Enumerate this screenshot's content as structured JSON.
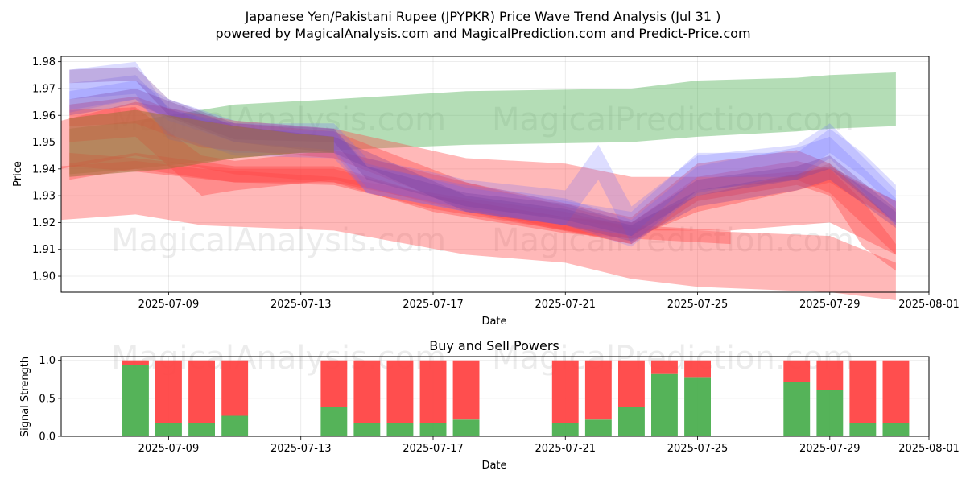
{
  "title_line1": "Japanese Yen/Pakistani Rupee (JPYPKR) Price Wave Trend Analysis (Jul 31 )",
  "title_line2": "powered by MagicalAnalysis.com and MagicalPrediction.com and Predict-Price.com",
  "watermarks": [
    "MagicalAnalysis.com",
    "MagicalPrediction.com"
  ],
  "colors": {
    "green": "#4caf50",
    "red": "#ff4444",
    "blue": "#6666ff",
    "purple": "#7a3fa0",
    "brown": "#a0703a"
  },
  "chart_data": [
    {
      "type": "area",
      "title": "",
      "xlabel": "Date",
      "ylabel": "Price",
      "xlim": [
        "2025-07-05 18:00",
        "2025-08-01 00:00"
      ],
      "ylim": [
        1.894,
        1.982
      ],
      "x_ticks": [
        "2025-07-09",
        "2025-07-13",
        "2025-07-17",
        "2025-07-21",
        "2025-07-25",
        "2025-07-29",
        "2025-08-01"
      ],
      "y_ticks": [
        "1.90",
        "1.91",
        "1.92",
        "1.93",
        "1.94",
        "1.95",
        "1.96",
        "1.97",
        "1.98"
      ],
      "grid": true,
      "series": [
        {
          "color": "green",
          "bands": [
            {
              "x": [
                "2025-07-06",
                "2025-07-08",
                "2025-07-11",
                "2025-07-14",
                "2025-07-18",
                "2025-07-23",
                "2025-07-25",
                "2025-07-28",
                "2025-07-29",
                "2025-07-31"
              ],
              "upper": [
                1.955,
                1.958,
                1.964,
                1.966,
                1.969,
                1.97,
                1.973,
                1.974,
                1.975,
                1.976
              ],
              "lower": [
                1.938,
                1.94,
                1.944,
                1.947,
                1.949,
                1.95,
                1.952,
                1.954,
                1.955,
                1.956
              ]
            }
          ]
        },
        {
          "color": "red",
          "bands": [
            {
              "x": [
                "2025-07-05 18:00",
                "2025-07-08",
                "2025-07-10",
                "2025-07-14",
                "2025-07-18",
                "2025-07-21",
                "2025-07-23",
                "2025-07-25",
                "2025-07-29",
                "2025-07-31"
              ],
              "upper": [
                1.941,
                1.943,
                1.94,
                1.937,
                1.929,
                1.924,
                1.918,
                1.917,
                1.915,
                1.905
              ],
              "lower": [
                1.921,
                1.923,
                1.919,
                1.917,
                1.908,
                1.905,
                1.899,
                1.896,
                1.894,
                1.891
              ]
            },
            {
              "x": [
                "2025-07-05 18:00",
                "2025-07-08",
                "2025-07-11",
                "2025-07-14",
                "2025-07-18",
                "2025-07-21",
                "2025-07-23",
                "2025-07-26",
                "2025-07-29",
                "2025-07-31"
              ],
              "upper": [
                1.958,
                1.965,
                1.958,
                1.955,
                1.944,
                1.942,
                1.937,
                1.937,
                1.94,
                1.928
              ],
              "lower": [
                1.94,
                1.945,
                1.938,
                1.935,
                1.925,
                1.922,
                1.917,
                1.917,
                1.92,
                1.908
              ]
            },
            {
              "x": [
                "2025-07-06",
                "2025-07-08",
                "2025-07-10",
                "2025-07-14",
                "2025-07-18",
                "2025-07-23",
                "2025-07-25",
                "2025-07-28",
                "2025-07-29",
                "2025-07-30",
                "2025-07-31"
              ],
              "upper": [
                1.964,
                1.967,
                1.958,
                1.954,
                1.935,
                1.92,
                1.937,
                1.943,
                1.94,
                1.928,
                1.912
              ],
              "lower": [
                1.956,
                1.957,
                1.948,
                1.944,
                1.925,
                1.912,
                1.928,
                1.934,
                1.93,
                1.911,
                1.902
              ]
            },
            {
              "x": [
                "2025-07-06",
                "2025-07-08",
                "2025-07-10",
                "2025-07-11",
                "2025-07-14",
                "2025-07-18",
                "2025-07-23",
                "2025-07-25",
                "2025-07-28",
                "2025-07-29",
                "2025-07-31"
              ],
              "upper": [
                1.962,
                1.963,
                1.945,
                1.943,
                1.947,
                1.935,
                1.922,
                1.942,
                1.947,
                1.942,
                1.92
              ],
              "lower": [
                1.95,
                1.952,
                1.93,
                1.932,
                1.936,
                1.924,
                1.912,
                1.932,
                1.936,
                1.931,
                1.908
              ]
            },
            {
              "x": [
                "2025-07-06",
                "2025-07-08",
                "2025-07-11",
                "2025-07-14",
                "2025-07-17",
                "2025-07-21",
                "2025-07-23",
                "2025-07-25",
                "2025-07-28",
                "2025-07-29",
                "2025-07-31"
              ],
              "upper": [
                1.942,
                1.946,
                1.941,
                1.941,
                1.93,
                1.922,
                1.92,
                1.93,
                1.938,
                1.941,
                1.928
              ],
              "lower": [
                1.936,
                1.94,
                1.935,
                1.935,
                1.924,
                1.916,
                1.914,
                1.924,
                1.932,
                1.935,
                1.92
              ]
            },
            {
              "x": [
                "2025-07-06",
                "2025-07-08",
                "2025-07-11",
                "2025-07-14",
                "2025-07-17",
                "2025-07-21",
                "2025-07-23",
                "2025-07-26"
              ],
              "upper": [
                1.946,
                1.944,
                1.94,
                1.94,
                1.93,
                1.922,
                1.919,
                1.917
              ],
              "lower": [
                1.941,
                1.939,
                1.935,
                1.934,
                1.925,
                1.917,
                1.914,
                1.912
              ]
            }
          ]
        },
        {
          "color": "blue",
          "bands": [
            {
              "x": [
                "2025-07-06",
                "2025-07-08",
                "2025-07-09",
                "2025-07-11",
                "2025-07-14",
                "2025-07-15",
                "2025-07-18",
                "2025-07-21",
                "2025-07-22",
                "2025-07-23",
                "2025-07-25",
                "2025-07-28",
                "2025-07-29",
                "2025-07-31"
              ],
              "upper": [
                1.977,
                1.98,
                1.962,
                1.957,
                1.957,
                1.944,
                1.936,
                1.932,
                1.949,
                1.926,
                1.945,
                1.949,
                1.957,
                1.932
              ],
              "lower": [
                1.966,
                1.968,
                1.951,
                1.946,
                1.946,
                1.931,
                1.924,
                1.919,
                1.936,
                1.912,
                1.932,
                1.936,
                1.944,
                1.919
              ]
            },
            {
              "x": [
                "2025-07-06",
                "2025-07-08",
                "2025-07-09",
                "2025-07-11",
                "2025-07-14",
                "2025-07-15",
                "2025-07-18",
                "2025-07-21",
                "2025-07-23",
                "2025-07-25",
                "2025-07-28",
                "2025-07-29",
                "2025-07-31"
              ],
              "upper": [
                1.972,
                1.975,
                1.963,
                1.955,
                1.954,
                1.941,
                1.934,
                1.929,
                1.921,
                1.941,
                1.948,
                1.952,
                1.929
              ],
              "lower": [
                1.962,
                1.966,
                1.953,
                1.945,
                1.944,
                1.931,
                1.924,
                1.919,
                1.911,
                1.931,
                1.938,
                1.942,
                1.919
              ]
            },
            {
              "x": [
                "2025-07-06",
                "2025-07-08",
                "2025-07-09",
                "2025-07-11",
                "2025-07-14",
                "2025-07-15",
                "2025-07-18",
                "2025-07-21",
                "2025-07-23",
                "2025-07-25",
                "2025-07-28",
                "2025-07-29",
                "2025-07-30",
                "2025-07-31"
              ],
              "upper": [
                1.969,
                1.973,
                1.966,
                1.958,
                1.955,
                1.942,
                1.933,
                1.928,
                1.924,
                1.946,
                1.946,
                1.955,
                1.946,
                1.934
              ],
              "lower": [
                1.961,
                1.966,
                1.958,
                1.95,
                1.947,
                1.933,
                1.925,
                1.919,
                1.915,
                1.937,
                1.937,
                1.946,
                1.937,
                1.925
              ]
            }
          ]
        },
        {
          "color": "purple",
          "bands": [
            {
              "x": [
                "2025-07-06",
                "2025-07-08",
                "2025-07-09",
                "2025-07-11",
                "2025-07-14",
                "2025-07-15",
                "2025-07-18",
                "2025-07-21",
                "2025-07-23",
                "2025-07-25",
                "2025-07-28",
                "2025-07-29",
                "2025-07-31"
              ],
              "upper": [
                1.977,
                1.978,
                1.966,
                1.957,
                1.955,
                1.941,
                1.931,
                1.927,
                1.92,
                1.936,
                1.941,
                1.945,
                1.925
              ],
              "lower": [
                1.972,
                1.973,
                1.96,
                1.951,
                1.95,
                1.936,
                1.926,
                1.921,
                1.915,
                1.93,
                1.936,
                1.94,
                1.92
              ]
            },
            {
              "x": [
                "2025-07-06",
                "2025-07-08",
                "2025-07-11",
                "2025-07-14",
                "2025-07-18",
                "2025-07-21",
                "2025-07-23",
                "2025-07-25",
                "2025-07-28",
                "2025-07-29",
                "2025-07-31"
              ],
              "upper": [
                1.966,
                1.97,
                1.956,
                1.952,
                1.93,
                1.925,
                1.919,
                1.932,
                1.938,
                1.942,
                1.924
              ],
              "lower": [
                1.96,
                1.964,
                1.95,
                1.946,
                1.924,
                1.919,
                1.913,
                1.926,
                1.932,
                1.936,
                1.918
              ]
            }
          ]
        },
        {
          "color": "brown",
          "bands": [
            {
              "x": [
                "2025-07-06",
                "2025-07-08",
                "2025-07-09",
                "2025-07-11",
                "2025-07-13",
                "2025-07-14"
              ],
              "upper": [
                1.959,
                1.962,
                1.96,
                1.956,
                1.953,
                1.952
              ],
              "lower": [
                1.937,
                1.939,
                1.94,
                1.944,
                1.946,
                1.946
              ]
            }
          ]
        }
      ]
    },
    {
      "type": "bar",
      "title": "Buy and Sell Powers",
      "xlabel": "Date",
      "ylabel": "Signal Strength",
      "xlim": [
        "2025-07-05 18:00",
        "2025-08-01 00:00"
      ],
      "ylim": [
        0,
        1.05
      ],
      "x_ticks": [
        "2025-07-09",
        "2025-07-13",
        "2025-07-17",
        "2025-07-21",
        "2025-07-25",
        "2025-07-29",
        "2025-08-01"
      ],
      "y_ticks": [
        "0.0",
        "0.5",
        "1.0"
      ],
      "grid": true,
      "stacked": true,
      "categories": [
        "2025-07-08",
        "2025-07-09",
        "2025-07-10",
        "2025-07-11",
        "2025-07-14",
        "2025-07-15",
        "2025-07-16",
        "2025-07-17",
        "2025-07-18",
        "2025-07-21",
        "2025-07-22",
        "2025-07-23",
        "2025-07-24",
        "2025-07-25",
        "2025-07-28",
        "2025-07-29",
        "2025-07-30",
        "2025-07-31"
      ],
      "series": [
        {
          "color": "green",
          "values": [
            0.94,
            0.17,
            0.17,
            0.27,
            0.39,
            0.17,
            0.17,
            0.17,
            0.22,
            0.17,
            0.22,
            0.39,
            0.83,
            0.78,
            0.72,
            0.61,
            0.17,
            0.17
          ]
        },
        {
          "color": "red",
          "values": [
            0.06,
            0.83,
            0.83,
            0.73,
            0.61,
            0.83,
            0.83,
            0.83,
            0.78,
            0.83,
            0.78,
            0.61,
            0.17,
            0.22,
            0.28,
            0.39,
            0.83,
            0.83
          ]
        }
      ]
    }
  ]
}
